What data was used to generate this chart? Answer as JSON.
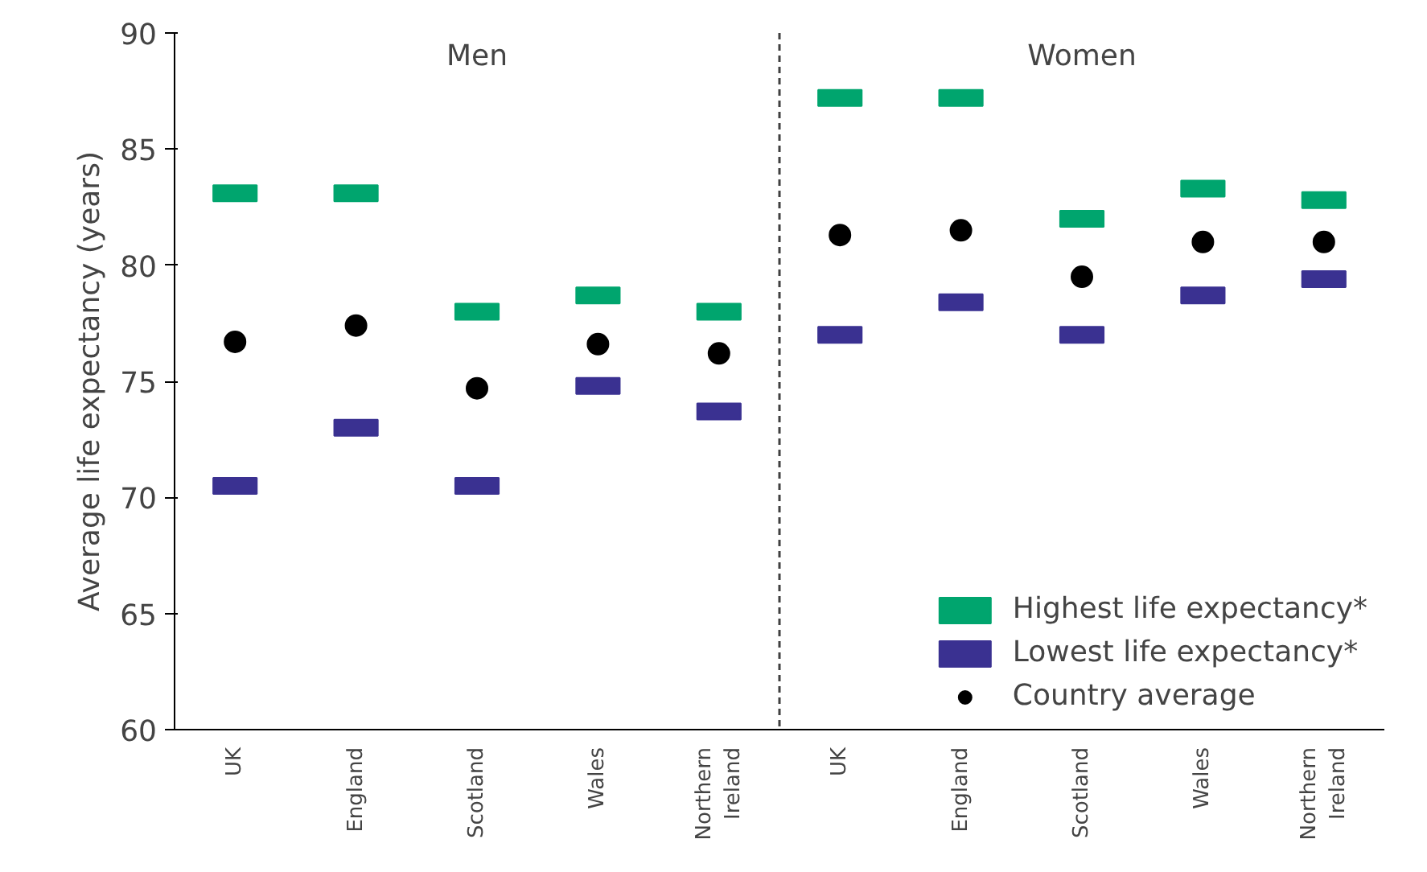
{
  "chart_data": {
    "type": "scatter",
    "ylabel": "Average life expectancy (years)",
    "categories": [
      "UK",
      "England",
      "Scotland",
      "Wales",
      "Northern\nIreland",
      "UK",
      "England",
      "Scotland",
      "Wales",
      "Northern\nIreland"
    ],
    "annotations": [
      "Men",
      "Women"
    ],
    "ylim": [
      60,
      90
    ],
    "yticks": [
      60,
      65,
      70,
      75,
      80,
      85,
      90
    ],
    "grid": false,
    "legend": "bottom right",
    "series": [
      {
        "name": "Highest life expectancy*",
        "color": "#00a56e",
        "marker": "square",
        "values": [
          83.1,
          83.1,
          78.0,
          78.7,
          78.0,
          87.2,
          87.2,
          82.0,
          83.3,
          82.8
        ]
      },
      {
        "name": "Lowest life expectancy*",
        "color": "#3a3191",
        "marker": "square",
        "values": [
          70.5,
          73.0,
          70.5,
          74.8,
          73.7,
          77.0,
          78.4,
          77.0,
          78.7,
          79.4
        ]
      },
      {
        "name": "Country average",
        "color": "#000000",
        "marker": "circle",
        "values": [
          76.7,
          77.4,
          74.7,
          76.6,
          76.2,
          81.3,
          81.5,
          79.5,
          81.0,
          81.0
        ]
      }
    ]
  }
}
